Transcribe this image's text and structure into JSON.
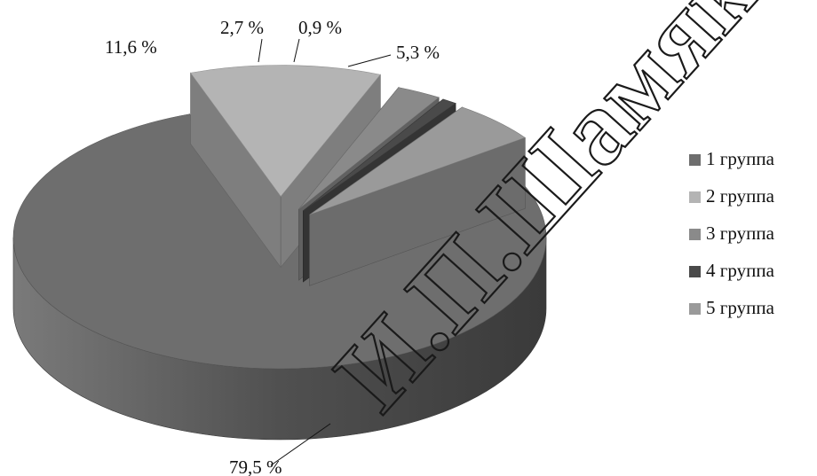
{
  "chart_data": {
    "type": "pie",
    "style": "3d-exploded",
    "slices": [
      {
        "name": "1 группа",
        "value": 79.5,
        "label": "79,5 %",
        "color": "#6e6e6e"
      },
      {
        "name": "2 группа",
        "value": 11.6,
        "label": "11,6 %",
        "color": "#b4b4b4"
      },
      {
        "name": "3 группа",
        "value": 2.7,
        "label": "2,7 %",
        "color": "#8a8a8a"
      },
      {
        "name": "4 группа",
        "value": 0.9,
        "label": "0,9 %",
        "color": "#4a4a4a"
      },
      {
        "name": "5 группа",
        "value": 5.3,
        "label": "5,3 %",
        "color": "#9a9a9a"
      }
    ],
    "legend": {
      "position": "right"
    }
  },
  "watermark": "И.П.Шамякин"
}
